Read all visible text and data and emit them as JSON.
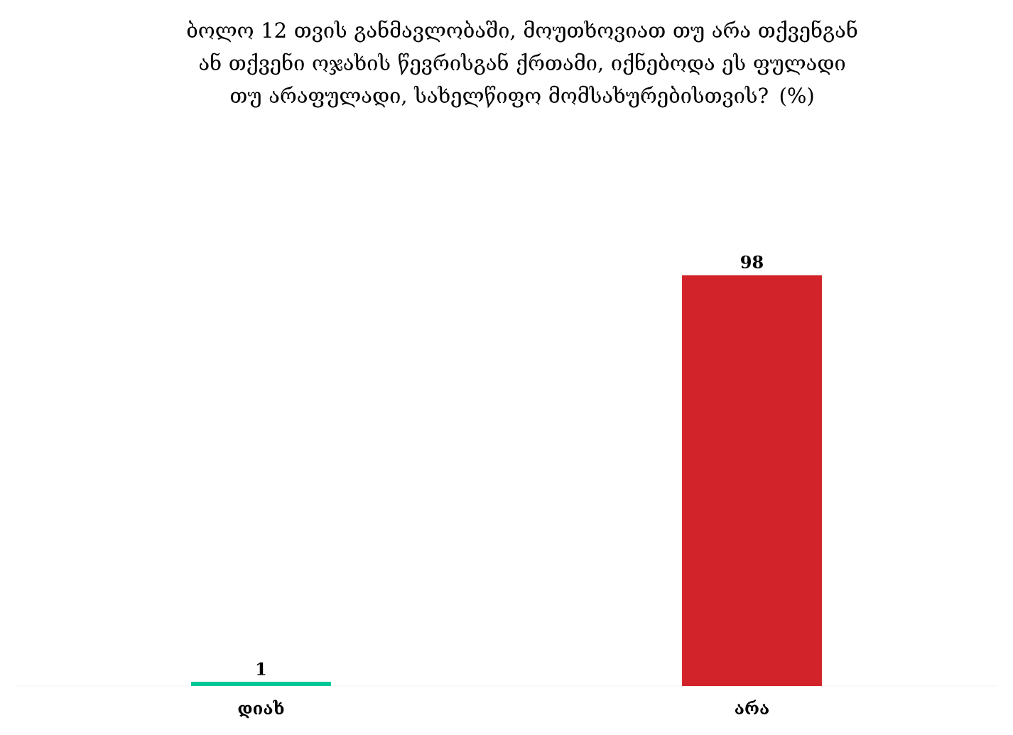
{
  "chart_data": {
    "type": "bar",
    "title": "ბოლო 12 თვის განმავლობაში, მოუთხოვიათ თუ არა თქვენგან ან თქვენი ოჯახის წევრისგან ქრთამი, იქნებოდა ეს ფულადი თუ არაფულადი, სახელწიფო მომსახურებისთვის? (%)",
    "categories": [
      "დიახ",
      "არა"
    ],
    "values": [
      1,
      98
    ],
    "colors": [
      "#00c896",
      "#d2232a"
    ],
    "data_labels": true
  }
}
